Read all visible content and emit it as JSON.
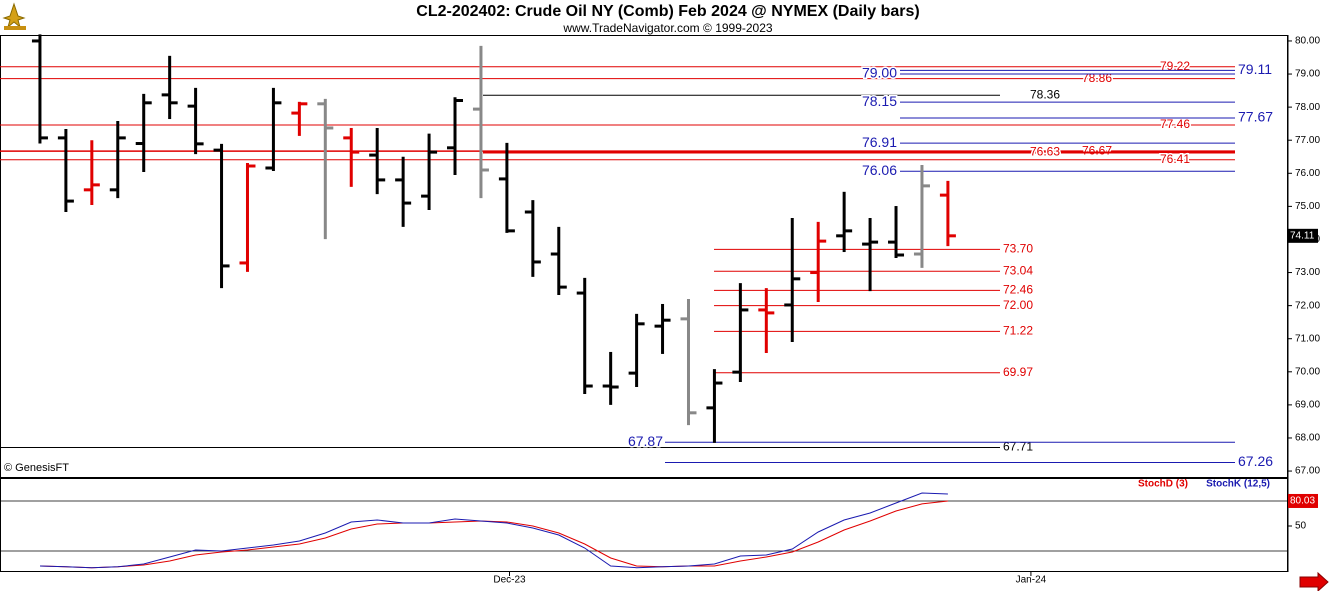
{
  "chart_data": [
    {
      "type": "ohlc",
      "title": "CL2-202402:  Crude Oil NY (Comb) Feb 2024 @ NYMEX  (Daily bars)",
      "subtitle": "www.TradeNavigator.com © 1999-2023",
      "watermark": "© GenesisFT",
      "open": [
        80.0,
        77.07,
        75.5,
        75.5,
        76.9,
        78.37,
        78.03,
        76.7,
        73.29,
        76.16,
        77.82,
        78.1,
        77.07,
        76.55,
        75.8,
        75.31,
        76.77,
        77.94,
        75.83,
        74.83,
        73.56,
        72.38,
        69.57,
        69.96,
        71.38,
        71.6,
        68.91,
        69.99,
        71.87,
        72.02,
        73.0,
        74.11,
        73.86,
        73.92,
        73.56,
        75.34
      ],
      "high": [
        80.2,
        77.34,
        77.0,
        77.58,
        78.4,
        79.55,
        78.58,
        76.89,
        76.31,
        78.58,
        78.16,
        78.25,
        77.37,
        77.37,
        76.5,
        77.2,
        78.3,
        79.85,
        76.92,
        75.19,
        74.38,
        72.84,
        70.6,
        71.75,
        72.05,
        72.2,
        70.08,
        72.68,
        72.53,
        74.65,
        74.53,
        75.44,
        74.65,
        75.01,
        76.25,
        75.77
      ],
      "low": [
        76.9,
        74.83,
        75.04,
        75.25,
        76.04,
        77.64,
        76.58,
        72.53,
        73.02,
        76.07,
        77.13,
        74.01,
        75.59,
        75.37,
        74.38,
        74.89,
        75.95,
        75.25,
        74.2,
        72.87,
        72.32,
        69.33,
        69.0,
        69.54,
        70.54,
        68.39,
        67.85,
        69.69,
        70.57,
        70.9,
        72.11,
        73.62,
        72.44,
        73.44,
        73.14,
        73.8
      ],
      "close": [
        77.07,
        75.16,
        75.65,
        77.07,
        78.13,
        78.13,
        76.89,
        73.2,
        76.22,
        78.13,
        78.1,
        77.37,
        76.64,
        75.8,
        75.1,
        76.64,
        78.2,
        76.1,
        74.26,
        73.32,
        72.56,
        69.57,
        69.54,
        71.45,
        71.56,
        68.76,
        69.66,
        71.87,
        71.78,
        72.81,
        73.95,
        74.26,
        73.92,
        73.53,
        75.62,
        74.11
      ],
      "colors": [
        "#000000",
        "#000000",
        "#e00000",
        "#000000",
        "#000000",
        "#000000",
        "#000000",
        "#000000",
        "#e00000",
        "#000000",
        "#e00000",
        "#888888",
        "#e00000",
        "#000000",
        "#000000",
        "#000000",
        "#000000",
        "#888888",
        "#000000",
        "#000000",
        "#000000",
        "#000000",
        "#000000",
        "#000000",
        "#000000",
        "#888888",
        "#000000",
        "#000000",
        "#e00000",
        "#000000",
        "#e00000",
        "#000000",
        "#000000",
        "#000000",
        "#888888",
        "#e00000"
      ],
      "xlim": [
        -1.54,
        48.11
      ],
      "ylim": [
        66.79,
        80.18
      ],
      "yticks": [
        {
          "value": 80,
          "label": "80.00"
        },
        {
          "value": 79,
          "label": "79.00"
        },
        {
          "value": 78,
          "label": "78.00"
        },
        {
          "value": 77,
          "label": "77.00"
        },
        {
          "value": 76,
          "label": "76.00"
        },
        {
          "value": 75,
          "label": "75.00"
        },
        {
          "value": 74,
          "label": "74.00"
        },
        {
          "value": 73,
          "label": "73.00"
        },
        {
          "value": 72,
          "label": "72.00"
        },
        {
          "value": 71,
          "label": "71.00"
        },
        {
          "value": 70,
          "label": "70.00"
        },
        {
          "value": 69,
          "label": "69.00"
        },
        {
          "value": 68,
          "label": "68.00"
        },
        {
          "value": 67,
          "label": "67.00"
        }
      ],
      "levels": [
        {
          "value": 79.22,
          "label": "79.22",
          "color": "#e00000"
        },
        {
          "value": 78.86,
          "label": "78.86",
          "color": "#e00000"
        },
        {
          "value": 77.46,
          "label": "77.46",
          "color": "#e00000"
        },
        {
          "value": 76.67,
          "label": "76.67",
          "color": "#e00000"
        },
        {
          "value": 76.63,
          "label": "76.63",
          "color": "#e00000"
        },
        {
          "value": 76.41,
          "label": "76.41",
          "color": "#e00000"
        },
        {
          "value": 73.7,
          "label": "73.70",
          "color": "#e00000"
        },
        {
          "value": 73.04,
          "label": "73.04",
          "color": "#e00000"
        },
        {
          "value": 72.46,
          "label": "72.46",
          "color": "#e00000"
        },
        {
          "value": 72,
          "label": "72.00",
          "color": "#e00000"
        },
        {
          "value": 71.22,
          "label": "71.22",
          "color": "#e00000"
        },
        {
          "value": 69.97,
          "label": "69.97",
          "color": "#e00000"
        },
        {
          "value": 78.36,
          "label": "78.36",
          "color": "#000000"
        },
        {
          "value": 67.71,
          "label": "67.71",
          "color": "#000000"
        },
        {
          "value": 79.11,
          "label": "79.11",
          "color": "#1a1ab0"
        },
        {
          "value": 79,
          "label": "79.00",
          "color": "#1a1ab0"
        },
        {
          "value": 78.15,
          "label": "78.15",
          "color": "#1a1ab0"
        },
        {
          "value": 77.67,
          "label": "77.67",
          "color": "#1a1ab0"
        },
        {
          "value": 76.91,
          "label": "76.91",
          "color": "#1a1ab0"
        },
        {
          "value": 76.06,
          "label": "76.06",
          "color": "#1a1ab0"
        },
        {
          "value": 67.87,
          "label": "67.87",
          "color": "#1a1ab0"
        },
        {
          "value": 67.26,
          "label": "67.26",
          "color": "#1a1ab0"
        }
      ]
    },
    {
      "type": "line",
      "series": [
        {
          "name": "StochD (3)",
          "color": "#e00000",
          "values": [
            2,
            1,
            0,
            1,
            3.2,
            8,
            15.2,
            18.8,
            21.2,
            24.8,
            28.4,
            35.6,
            46.4,
            52.4,
            53.6,
            53.6,
            54.8,
            56,
            54.8,
            50,
            41.6,
            28.4,
            11.6,
            2,
            1,
            2,
            2,
            8,
            12.8,
            18.8,
            30.8,
            45.2,
            56,
            68,
            76.5,
            80.03
          ]
        },
        {
          "name": "StochK (12,5)",
          "color": "#1a1ab0",
          "values": [
            2,
            1,
            0,
            1,
            4.4,
            12.8,
            21.2,
            20,
            23.6,
            27.2,
            32,
            41.6,
            54.8,
            57.2,
            53.6,
            53.6,
            58.4,
            56,
            53.6,
            47.6,
            39.2,
            23.6,
            2,
            0,
            1,
            2,
            4.4,
            14,
            15.2,
            22.4,
            42.8,
            57.2,
            65.6,
            77.6,
            89.6,
            88.4
          ]
        }
      ],
      "xlim": [
        -1.54,
        48.11
      ],
      "ylim": [
        -5.2,
        107.6
      ],
      "yticks": [
        50
      ],
      "guides": [
        20,
        80
      ],
      "xticks": [
        {
          "value": 18.1,
          "label": "Dec-23"
        },
        {
          "value": 38.2,
          "label": "Jan-24"
        }
      ]
    }
  ]
}
